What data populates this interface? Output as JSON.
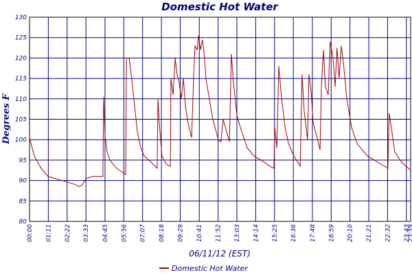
{
  "chart_data": {
    "type": "line",
    "title": "Domestic Hot Water",
    "xlabel": "06/11/12 (EST)",
    "ylabel": "Degrees F",
    "grid": true,
    "legend": "bottom",
    "xlim": [
      0,
      1439
    ],
    "xticks": [
      {
        "value": 0,
        "label": "00:00"
      },
      {
        "value": 71,
        "label": "01:11"
      },
      {
        "value": 142,
        "label": "02:22"
      },
      {
        "value": 213,
        "label": "03:33"
      },
      {
        "value": 285,
        "label": "04:45"
      },
      {
        "value": 356,
        "label": "05:56"
      },
      {
        "value": 427,
        "label": "07:07"
      },
      {
        "value": 498,
        "label": "08:18"
      },
      {
        "value": 569,
        "label": "09:29"
      },
      {
        "value": 641,
        "label": "10:41"
      },
      {
        "value": 712,
        "label": "11:52"
      },
      {
        "value": 783,
        "label": "13:03"
      },
      {
        "value": 854,
        "label": "14:14"
      },
      {
        "value": 925,
        "label": "15:25"
      },
      {
        "value": 996,
        "label": "16:36"
      },
      {
        "value": 1068,
        "label": "17:48"
      },
      {
        "value": 1139,
        "label": "18:59"
      },
      {
        "value": 1210,
        "label": "20:10"
      },
      {
        "value": 1281,
        "label": "21:21"
      },
      {
        "value": 1352,
        "label": "22:32"
      },
      {
        "value": 1423,
        "label": "23:43"
      },
      {
        "value": 1439,
        "label": "23:59"
      }
    ],
    "ylim": [
      80,
      130
    ],
    "yticks": [
      80,
      85,
      90,
      95,
      100,
      105,
      110,
      115,
      120,
      125,
      130
    ],
    "x": [
      0,
      18,
      44,
      70,
      96,
      148,
      174,
      187,
      200,
      213,
      239,
      277,
      280,
      285,
      293,
      303,
      329,
      363,
      366,
      376,
      384,
      394,
      407,
      420,
      433,
      459,
      482,
      485,
      490,
      500,
      516,
      532,
      534,
      542,
      550,
      557,
      565,
      573,
      581,
      589,
      599,
      612,
      620,
      625,
      633,
      638,
      646,
      653,
      661,
      666,
      679,
      692,
      713,
      723,
      731,
      744,
      755,
      762,
      770,
      783,
      796,
      822,
      848,
      874,
      907,
      923,
      926,
      934,
      941,
      952,
      965,
      978,
      998,
      1022,
      1029,
      1037,
      1050,
      1055,
      1063,
      1071,
      1084,
      1097,
      1102,
      1110,
      1117,
      1128,
      1135,
      1146,
      1154,
      1161,
      1169,
      1177,
      1185,
      1198,
      1216,
      1237,
      1276,
      1315,
      1353,
      1358,
      1366,
      1379,
      1405,
      1439
    ],
    "series": [
      {
        "name": "Domestic Hot Water",
        "color": "#a00000",
        "values": [
          100.5,
          96,
          93,
          91,
          90.5,
          89.5,
          89,
          88.5,
          89,
          90.5,
          91,
          91,
          110.5,
          101,
          97,
          95,
          93,
          91.5,
          120,
          120,
          116,
          110,
          102,
          98,
          96,
          94.5,
          93,
          110,
          104,
          96,
          94,
          93.5,
          115,
          111,
          120,
          116,
          114,
          110,
          115,
          108,
          104,
          100.5,
          116,
          123,
          122,
          125.5,
          122,
          124.5,
          120,
          115,
          110,
          105,
          100,
          99.5,
          105,
          102,
          99.5,
          121,
          114,
          106,
          103,
          98,
          96,
          95,
          93.5,
          93,
          103,
          98,
          118,
          110,
          103,
          99,
          96,
          93.5,
          116,
          107,
          100,
          116,
          112,
          104,
          101,
          97.5,
          113,
          122,
          113,
          111,
          124,
          120,
          113,
          122.5,
          115,
          123,
          119,
          110,
          103,
          99,
          96,
          94.5,
          93,
          106.5,
          103,
          97,
          94.5,
          92.5
        ]
      }
    ]
  }
}
